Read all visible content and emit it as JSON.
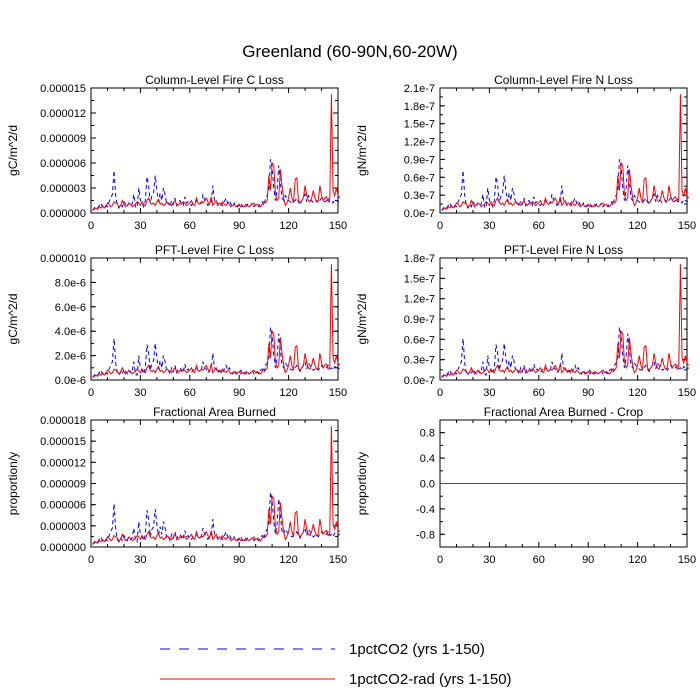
{
  "title": "Greenland (60-90N,60-20W)",
  "legend": [
    {
      "label": "1pctCO2 (yrs 1-150)",
      "color": "#0000ff",
      "style": "dashed"
    },
    {
      "label": "1pctCO2-rad (yrs 1-150)",
      "color": "#ff0000",
      "style": "solid"
    }
  ],
  "chart_data": [
    {
      "type": "line",
      "title": "Column-Level Fire C Loss",
      "ylabel": "gC/m^2/d",
      "xlim": [
        0,
        150
      ],
      "ylim": [
        0,
        1.5e-05
      ],
      "xticks": [
        "0",
        "30",
        "60",
        "90",
        "120",
        "150"
      ],
      "yticks": [
        "0.000000",
        "0.000003",
        "0.000006",
        "0.000009",
        "0.000012",
        "0.000015"
      ],
      "scale": 1.5e-05,
      "series": [
        {
          "name": "1pctCO2 (yrs 1-150)",
          "color": "#0000ff",
          "dash": true,
          "profile": "blue"
        },
        {
          "name": "1pctCO2-rad (yrs 1-150)",
          "color": "#ff0000",
          "dash": false,
          "profile": "red"
        }
      ]
    },
    {
      "type": "line",
      "title": "Column-Level Fire N Loss",
      "ylabel": "gN/m^2/d",
      "xlim": [
        0,
        150
      ],
      "ylim": [
        0,
        2.1e-07
      ],
      "xticks": [
        "0",
        "30",
        "60",
        "90",
        "120",
        "150"
      ],
      "yticks": [
        "0.0e-7",
        "0.3e-7",
        "0.6e-7",
        "0.9e-7",
        "1.2e-7",
        "1.5e-7",
        "1.8e-7",
        "2.1e-7"
      ],
      "scale": 2.1e-07,
      "series": [
        {
          "name": "1pctCO2 (yrs 1-150)",
          "color": "#0000ff",
          "dash": true,
          "profile": "blue"
        },
        {
          "name": "1pctCO2-rad (yrs 1-150)",
          "color": "#ff0000",
          "dash": false,
          "profile": "red"
        }
      ]
    },
    {
      "type": "line",
      "title": "PFT-Level Fire C Loss",
      "ylabel": "gC/m^2/d",
      "xlim": [
        0,
        150
      ],
      "ylim": [
        0,
        1e-05
      ],
      "xticks": [
        "0",
        "30",
        "60",
        "90",
        "120",
        "150"
      ],
      "yticks": [
        "0.0e-6",
        "2.0e-6",
        "4.0e-6",
        "6.0e-6",
        "8.0e-6",
        "0.000010"
      ],
      "scale": 1e-05,
      "series": [
        {
          "name": "1pctCO2 (yrs 1-150)",
          "color": "#0000ff",
          "dash": true,
          "profile": "blue"
        },
        {
          "name": "1pctCO2-rad (yrs 1-150)",
          "color": "#ff0000",
          "dash": false,
          "profile": "red"
        }
      ]
    },
    {
      "type": "line",
      "title": "PFT-Level Fire N Loss",
      "ylabel": "gN/m^2/d",
      "xlim": [
        0,
        150
      ],
      "ylim": [
        0,
        1.8e-07
      ],
      "xticks": [
        "0",
        "30",
        "60",
        "90",
        "120",
        "150"
      ],
      "yticks": [
        "0.0e-7",
        "0.3e-7",
        "0.6e-7",
        "0.9e-7",
        "1.2e-7",
        "1.5e-7",
        "1.8e-7"
      ],
      "scale": 1.8e-07,
      "series": [
        {
          "name": "1pctCO2 (yrs 1-150)",
          "color": "#0000ff",
          "dash": true,
          "profile": "blue"
        },
        {
          "name": "1pctCO2-rad (yrs 1-150)",
          "color": "#ff0000",
          "dash": false,
          "profile": "red"
        }
      ]
    },
    {
      "type": "line",
      "title": "Fractional Area Burned",
      "ylabel": "proportion/y",
      "xlim": [
        0,
        150
      ],
      "ylim": [
        0,
        1.8e-05
      ],
      "xticks": [
        "0",
        "30",
        "60",
        "90",
        "120",
        "150"
      ],
      "yticks": [
        "0.000000",
        "0.000003",
        "0.000006",
        "0.000009",
        "0.000012",
        "0.000015",
        "0.000018"
      ],
      "scale": 1.8e-05,
      "series": [
        {
          "name": "1pctCO2 (yrs 1-150)",
          "color": "#0000ff",
          "dash": true,
          "profile": "blue"
        },
        {
          "name": "1pctCO2-rad (yrs 1-150)",
          "color": "#ff0000",
          "dash": false,
          "profile": "red"
        }
      ]
    },
    {
      "type": "line",
      "title": "Fractional Area Burned - Crop",
      "ylabel": "proportion/y",
      "xlim": [
        0,
        150
      ],
      "ylim": [
        -1,
        1
      ],
      "xticks": [
        "0",
        "30",
        "60",
        "90",
        "120",
        "150"
      ],
      "yticks": [
        "-0.8",
        "-0.4",
        "0.0",
        "0.4",
        "0.8"
      ],
      "yticks_at": [
        -0.8,
        -0.4,
        0,
        0.4,
        0.8
      ],
      "series": [
        {
          "name": "1pctCO2 (yrs 1-150)",
          "color": "#0000ff",
          "dash": true,
          "constant": 0
        },
        {
          "name": "1pctCO2-rad (yrs 1-150)",
          "color": "#ff0000",
          "dash": false,
          "constant": 0
        }
      ]
    }
  ],
  "profiles": {
    "blue": [
      0.02,
      0.04,
      0.05,
      0.04,
      0.06,
      0.08,
      0.05,
      0.04,
      0.06,
      0.05,
      0.09,
      0.12,
      0.15,
      0.34,
      0.14,
      0.06,
      0.04,
      0.07,
      0.05,
      0.09,
      0.07,
      0.05,
      0.08,
      0.06,
      0.07,
      0.15,
      0.05,
      0.04,
      0.2,
      0.1,
      0.08,
      0.05,
      0.1,
      0.29,
      0.22,
      0.08,
      0.14,
      0.16,
      0.3,
      0.18,
      0.09,
      0.16,
      0.1,
      0.2,
      0.15,
      0.07,
      0.08,
      0.05,
      0.1,
      0.07,
      0.12,
      0.06,
      0.09,
      0.1,
      0.08,
      0.06,
      0.13,
      0.08,
      0.09,
      0.07,
      0.06,
      0.08,
      0.09,
      0.1,
      0.08,
      0.07,
      0.08,
      0.15,
      0.1,
      0.09,
      0.06,
      0.08,
      0.09,
      0.22,
      0.1,
      0.09,
      0.06,
      0.07,
      0.08,
      0.06,
      0.09,
      0.12,
      0.08,
      0.1,
      0.07,
      0.05,
      0.08,
      0.06,
      0.05,
      0.06,
      0.08,
      0.05,
      0.06,
      0.05,
      0.07,
      0.05,
      0.06,
      0.08,
      0.05,
      0.07,
      0.06,
      0.05,
      0.08,
      0.09,
      0.06,
      0.12,
      0.14,
      0.18,
      0.43,
      0.36,
      0.2,
      0.1,
      0.18,
      0.38,
      0.25,
      0.12,
      0.1,
      0.14,
      0.12,
      0.1,
      0.09,
      0.08,
      0.09,
      0.1,
      0.12,
      0.09,
      0.07,
      0.1,
      0.12,
      0.15,
      0.09,
      0.14,
      0.12,
      0.1,
      0.08,
      0.09,
      0.1,
      0.08,
      0.1,
      0.12,
      0.1,
      0.09,
      0.1,
      0.12,
      0.09,
      0.1,
      0.08,
      0.11,
      0.1,
      0.09,
      0.1
    ],
    "red": [
      0.02,
      0.03,
      0.04,
      0.03,
      0.05,
      0.04,
      0.06,
      0.04,
      0.05,
      0.08,
      0.07,
      0.05,
      0.06,
      0.09,
      0.08,
      0.07,
      0.05,
      0.06,
      0.1,
      0.07,
      0.05,
      0.06,
      0.08,
      0.07,
      0.05,
      0.06,
      0.07,
      0.09,
      0.08,
      0.06,
      0.09,
      0.07,
      0.06,
      0.1,
      0.12,
      0.08,
      0.07,
      0.08,
      0.06,
      0.09,
      0.11,
      0.07,
      0.08,
      0.06,
      0.07,
      0.09,
      0.08,
      0.07,
      0.06,
      0.08,
      0.1,
      0.07,
      0.06,
      0.08,
      0.07,
      0.09,
      0.08,
      0.06,
      0.07,
      0.08,
      0.1,
      0.07,
      0.06,
      0.12,
      0.08,
      0.07,
      0.09,
      0.08,
      0.1,
      0.12,
      0.09,
      0.07,
      0.13,
      0.06,
      0.08,
      0.1,
      0.07,
      0.08,
      0.06,
      0.09,
      0.07,
      0.06,
      0.08,
      0.07,
      0.05,
      0.06,
      0.07,
      0.05,
      0.06,
      0.07,
      0.05,
      0.06,
      0.05,
      0.07,
      0.06,
      0.05,
      0.06,
      0.07,
      0.08,
      0.06,
      0.07,
      0.06,
      0.05,
      0.07,
      0.09,
      0.08,
      0.1,
      0.3,
      0.18,
      0.4,
      0.38,
      0.15,
      0.1,
      0.12,
      0.35,
      0.22,
      0.12,
      0.06,
      0.08,
      0.12,
      0.2,
      0.12,
      0.08,
      0.27,
      0.28,
      0.1,
      0.08,
      0.1,
      0.12,
      0.22,
      0.14,
      0.1,
      0.09,
      0.12,
      0.18,
      0.12,
      0.09,
      0.1,
      0.22,
      0.14,
      0.1,
      0.12,
      0.13,
      0.09,
      0.11,
      0.95,
      0.18,
      0.14,
      0.2,
      0.14,
      0.12
    ]
  }
}
